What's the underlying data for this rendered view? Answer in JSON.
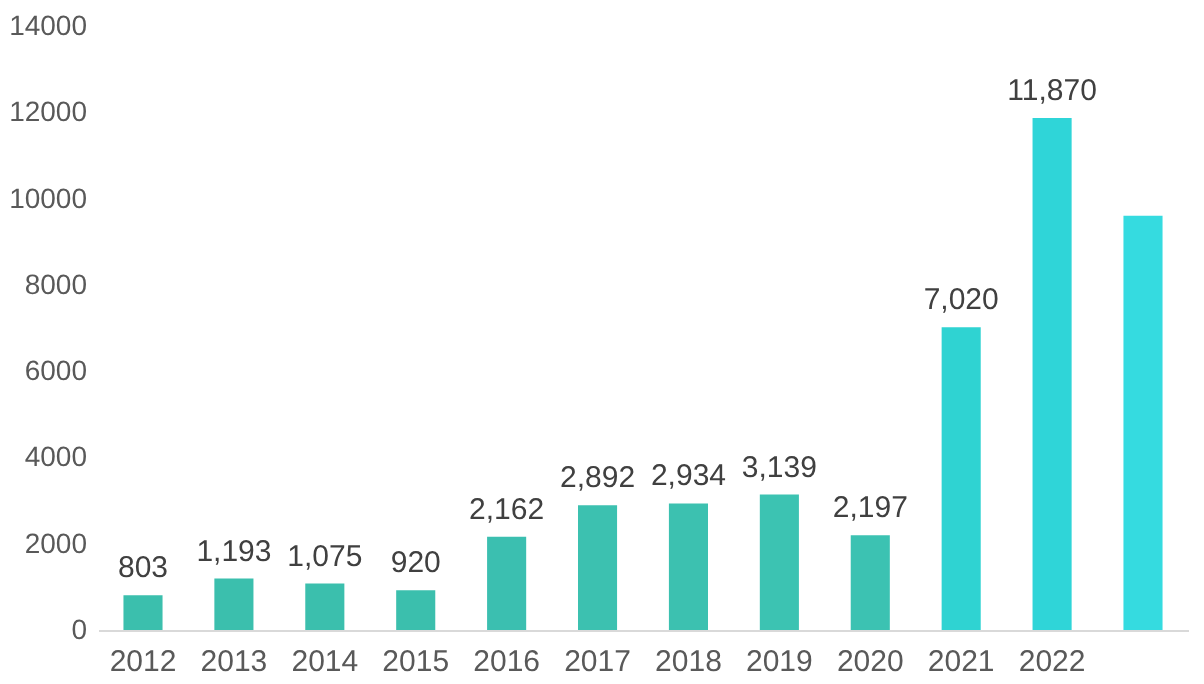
{
  "chart_data": {
    "type": "bar",
    "categories": [
      "2012",
      "2013",
      "2014",
      "2015",
      "2016",
      "2017",
      "2018",
      "2019",
      "2020",
      "2021",
      "2022",
      null
    ],
    "values": [
      803,
      1193,
      1075,
      920,
      2162,
      2892,
      2934,
      3139,
      2197,
      7020,
      11870,
      9600
    ],
    "value_labels": [
      "803",
      "1,193",
      "1,075",
      "920",
      "2,162",
      "2,892",
      "2,934",
      "3,139",
      "2,197",
      "7,020",
      "11,870",
      null
    ],
    "colors": [
      "#3bbfad",
      "#3bbfad",
      "#3bbfad",
      "#3bbfad",
      "#3bbfb0",
      "#3cc1b0",
      "#3cc1b0",
      "#3cc3b2",
      "#3cc2b2",
      "#2fd3d2",
      "#2fd5d8",
      "#35dbe0"
    ],
    "ylim": [
      0,
      14000
    ],
    "yticks": [
      0,
      2000,
      4000,
      6000,
      8000,
      10000,
      12000,
      14000
    ],
    "grid": false
  }
}
